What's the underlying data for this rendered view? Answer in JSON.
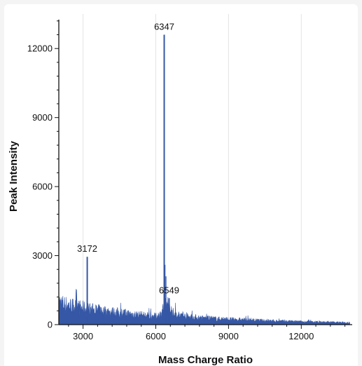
{
  "chart_data": {
    "type": "line",
    "title": "",
    "xlabel": "Mass Charge Ratio",
    "ylabel": "Peak Intensity",
    "xlim": [
      2000,
      14100
    ],
    "ylim": [
      0,
      13500
    ],
    "x_ticks": [
      3000,
      6000,
      9000,
      12000
    ],
    "y_ticks": [
      0,
      3000,
      6000,
      9000,
      12000
    ],
    "x_tick_labels": [
      "3000",
      "6000",
      "9000",
      "12000"
    ],
    "y_tick_labels": [
      "0",
      "3000",
      "6000",
      "9000",
      "12000"
    ],
    "grid": "vertical",
    "color": "#3557a5",
    "series": [
      {
        "envelope": [
          {
            "x": 2000,
            "y": 1450
          },
          {
            "x": 2200,
            "y": 1300
          },
          {
            "x": 2500,
            "y": 1200
          },
          {
            "x": 2800,
            "y": 1100
          },
          {
            "x": 3000,
            "y": 1050
          },
          {
            "x": 3300,
            "y": 960
          },
          {
            "x": 3600,
            "y": 900
          },
          {
            "x": 4000,
            "y": 820
          },
          {
            "x": 4500,
            "y": 740
          },
          {
            "x": 5000,
            "y": 660
          },
          {
            "x": 5500,
            "y": 580
          },
          {
            "x": 6000,
            "y": 520
          },
          {
            "x": 6200,
            "y": 650
          },
          {
            "x": 6300,
            "y": 1000
          },
          {
            "x": 6400,
            "y": 1200
          },
          {
            "x": 6550,
            "y": 1150
          },
          {
            "x": 6700,
            "y": 750
          },
          {
            "x": 7000,
            "y": 560
          },
          {
            "x": 7500,
            "y": 470
          },
          {
            "x": 8000,
            "y": 400
          },
          {
            "x": 9000,
            "y": 330
          },
          {
            "x": 10000,
            "y": 270
          },
          {
            "x": 11000,
            "y": 220
          },
          {
            "x": 12000,
            "y": 180
          },
          {
            "x": 13000,
            "y": 150
          },
          {
            "x": 14000,
            "y": 120
          }
        ]
      }
    ],
    "peaks": [
      {
        "label": "3172",
        "x": 3172,
        "y": 2950
      },
      {
        "label": "6347",
        "x": 6347,
        "y": 12600
      },
      {
        "label": "6549",
        "x": 6549,
        "y": 1150
      }
    ]
  }
}
